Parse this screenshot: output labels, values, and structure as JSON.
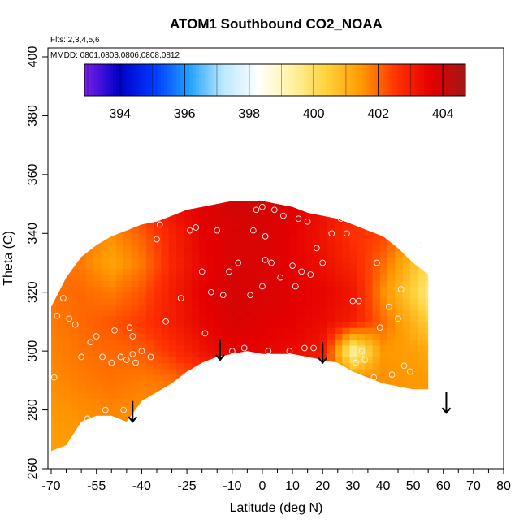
{
  "chart_data": {
    "type": "heatmap",
    "title": "ATOM1 Southbound CO2_NOAA",
    "flights_note": "Flts: 2,3,4,5,6",
    "dates_note": "MMDD: 0801,0803,0806,0808,0812",
    "xlabel": "Latitude (deg N)",
    "ylabel": "Theta (C)",
    "xlim": [
      -70,
      80
    ],
    "ylim": [
      260,
      400
    ],
    "x_ticks": [
      -70,
      -55,
      -40,
      -25,
      -10,
      0,
      10,
      20,
      30,
      40,
      50,
      60,
      70,
      80
    ],
    "x_minor_ticks": [
      -65,
      -60,
      -50,
      -45,
      -35,
      -30,
      -20,
      -15,
      -5,
      5,
      15,
      25,
      35,
      45,
      55,
      65,
      75
    ],
    "y_ticks": [
      260,
      280,
      300,
      320,
      340,
      360,
      380,
      400
    ],
    "colorbar": {
      "ticks": [
        394,
        396,
        398,
        400,
        402,
        404
      ],
      "range": [
        392.9,
        404.7
      ],
      "colors": [
        "#7b1fe8",
        "#0000c8",
        "#0038ff",
        "#1ea0ff",
        "#b9e8ff",
        "#ffffff",
        "#fff2a0",
        "#ffd23a",
        "#ff9a00",
        "#ff3200",
        "#e40000",
        "#a01818"
      ]
    },
    "envelope": {
      "lat": [
        -70,
        -65,
        -60,
        -55,
        -50,
        -45,
        -40,
        -35,
        -30,
        -25,
        -20,
        -15,
        -10,
        -5,
        0,
        5,
        10,
        15,
        20,
        25,
        30,
        35,
        40,
        45,
        50,
        55
      ],
      "theta_min": [
        266,
        268,
        276,
        278,
        278,
        276,
        283,
        286,
        289,
        293,
        296,
        298,
        299,
        300,
        299,
        299,
        299,
        298,
        297,
        296,
        293,
        291,
        289,
        288,
        287,
        287
      ],
      "theta_max": [
        315,
        325,
        332,
        336,
        339,
        341,
        343,
        344,
        346,
        348,
        349,
        350,
        351,
        351,
        351,
        350,
        349,
        347,
        346,
        345,
        343,
        341,
        339,
        335,
        330,
        326
      ]
    },
    "co2_grid": {
      "lat": [
        -70,
        -60,
        -50,
        -40,
        -30,
        -20,
        -10,
        0,
        10,
        20,
        30,
        40,
        50,
        55
      ],
      "theta": [
        270,
        280,
        290,
        300,
        310,
        320,
        330,
        340,
        350
      ],
      "values": [
        [
          401.4,
          401.5,
          401.6,
          401.5,
          401.4,
          401.6,
          401.9,
          402.0,
          401.8,
          401.6,
          401.5,
          401.4,
          401.4,
          401.4
        ],
        [
          401.5,
          401.6,
          401.7,
          401.6,
          401.5,
          401.7,
          402.0,
          402.2,
          402.0,
          401.8,
          401.6,
          401.5,
          401.4,
          401.4
        ],
        [
          401.6,
          401.8,
          401.9,
          401.8,
          401.9,
          402.3,
          402.8,
          403.1,
          402.8,
          402.4,
          401.9,
          401.6,
          401.5,
          401.5
        ],
        [
          401.7,
          401.9,
          402.0,
          402.1,
          402.6,
          403.2,
          403.6,
          403.5,
          403.4,
          403.1,
          399.2,
          401.5,
          401.4,
          401.2
        ],
        [
          401.8,
          402.0,
          402.2,
          402.5,
          403.0,
          403.5,
          403.8,
          403.7,
          403.6,
          403.4,
          403.0,
          402.0,
          401.0,
          400.5
        ],
        [
          401.9,
          402.0,
          401.8,
          402.2,
          403.0,
          403.6,
          403.9,
          403.8,
          403.7,
          403.5,
          403.2,
          401.6,
          400.4,
          399.6
        ],
        [
          402.0,
          401.8,
          401.3,
          401.8,
          402.8,
          403.5,
          403.8,
          403.8,
          403.6,
          403.3,
          402.8,
          402.0,
          400.8,
          400.2
        ],
        [
          402.1,
          401.9,
          401.6,
          402.1,
          402.9,
          403.6,
          403.8,
          403.8,
          403.6,
          403.2,
          402.6,
          402.4,
          401.6,
          401.4
        ],
        [
          402.2,
          402.2,
          402.3,
          402.6,
          403.3,
          403.7,
          403.9,
          403.9,
          403.7,
          403.3,
          402.8,
          402.5,
          402.0,
          401.8
        ]
      ]
    },
    "sample_points": [
      {
        "lat": -69,
        "theta": 291
      },
      {
        "lat": -68,
        "theta": 312
      },
      {
        "lat": -66,
        "theta": 318
      },
      {
        "lat": -64,
        "theta": 311
      },
      {
        "lat": -62,
        "theta": 309
      },
      {
        "lat": -60,
        "theta": 298
      },
      {
        "lat": -58,
        "theta": 277
      },
      {
        "lat": -57,
        "theta": 303
      },
      {
        "lat": -55,
        "theta": 305
      },
      {
        "lat": -53,
        "theta": 298
      },
      {
        "lat": -52,
        "theta": 280
      },
      {
        "lat": -50,
        "theta": 296
      },
      {
        "lat": -49,
        "theta": 307
      },
      {
        "lat": -47,
        "theta": 298
      },
      {
        "lat": -46,
        "theta": 280
      },
      {
        "lat": -45,
        "theta": 297
      },
      {
        "lat": -44,
        "theta": 308
      },
      {
        "lat": -43,
        "theta": 305
      },
      {
        "lat": -43,
        "theta": 299
      },
      {
        "lat": -42,
        "theta": 296
      },
      {
        "lat": -40,
        "theta": 300
      },
      {
        "lat": -38,
        "theta": 283
      },
      {
        "lat": -37,
        "theta": 298
      },
      {
        "lat": -35,
        "theta": 338
      },
      {
        "lat": -34,
        "theta": 343
      },
      {
        "lat": -32,
        "theta": 310
      },
      {
        "lat": -31,
        "theta": 286
      },
      {
        "lat": -27,
        "theta": 318
      },
      {
        "lat": -24,
        "theta": 341
      },
      {
        "lat": -22,
        "theta": 342
      },
      {
        "lat": -20,
        "theta": 327
      },
      {
        "lat": -19,
        "theta": 306
      },
      {
        "lat": -17,
        "theta": 320
      },
      {
        "lat": -15,
        "theta": 341
      },
      {
        "lat": -13,
        "theta": 319
      },
      {
        "lat": -11,
        "theta": 327
      },
      {
        "lat": -10,
        "theta": 300
      },
      {
        "lat": -8,
        "theta": 330
      },
      {
        "lat": -6,
        "theta": 301
      },
      {
        "lat": -4,
        "theta": 319
      },
      {
        "lat": -3,
        "theta": 341
      },
      {
        "lat": -2,
        "theta": 348
      },
      {
        "lat": 0,
        "theta": 322
      },
      {
        "lat": 0,
        "theta": 349
      },
      {
        "lat": 1,
        "theta": 331
      },
      {
        "lat": 1,
        "theta": 339
      },
      {
        "lat": 2,
        "theta": 300
      },
      {
        "lat": 3,
        "theta": 330
      },
      {
        "lat": 4,
        "theta": 348
      },
      {
        "lat": 6,
        "theta": 325
      },
      {
        "lat": 7,
        "theta": 346
      },
      {
        "lat": 9,
        "theta": 300
      },
      {
        "lat": 10,
        "theta": 329
      },
      {
        "lat": 11,
        "theta": 322
      },
      {
        "lat": 12,
        "theta": 345
      },
      {
        "lat": 13,
        "theta": 327
      },
      {
        "lat": 14,
        "theta": 301
      },
      {
        "lat": 15,
        "theta": 344
      },
      {
        "lat": 16,
        "theta": 326
      },
      {
        "lat": 17,
        "theta": 301
      },
      {
        "lat": 18,
        "theta": 335
      },
      {
        "lat": 20,
        "theta": 330
      },
      {
        "lat": 21,
        "theta": 347
      },
      {
        "lat": 23,
        "theta": 340
      },
      {
        "lat": 26,
        "theta": 345
      },
      {
        "lat": 28,
        "theta": 340
      },
      {
        "lat": 30,
        "theta": 317
      },
      {
        "lat": 31,
        "theta": 296
      },
      {
        "lat": 32,
        "theta": 317
      },
      {
        "lat": 33,
        "theta": 300
      },
      {
        "lat": 34,
        "theta": 297
      },
      {
        "lat": 37,
        "theta": 291
      },
      {
        "lat": 38,
        "theta": 330
      },
      {
        "lat": 39,
        "theta": 308
      },
      {
        "lat": 40,
        "theta": 341
      },
      {
        "lat": 42,
        "theta": 315
      },
      {
        "lat": 43,
        "theta": 292
      },
      {
        "lat": 45,
        "theta": 311
      },
      {
        "lat": 46,
        "theta": 321
      },
      {
        "lat": 47,
        "theta": 295
      },
      {
        "lat": 49,
        "theta": 293
      },
      {
        "lat": 52,
        "theta": 336
      }
    ],
    "arrows": [
      {
        "lat": -43,
        "theta_top": 283,
        "theta_tip": 276
      },
      {
        "lat": -14,
        "theta_top": 304,
        "theta_tip": 297
      },
      {
        "lat": 20,
        "theta_top": 303,
        "theta_tip": 296
      },
      {
        "lat": 61,
        "theta_top": 286,
        "theta_tip": 279
      }
    ]
  }
}
